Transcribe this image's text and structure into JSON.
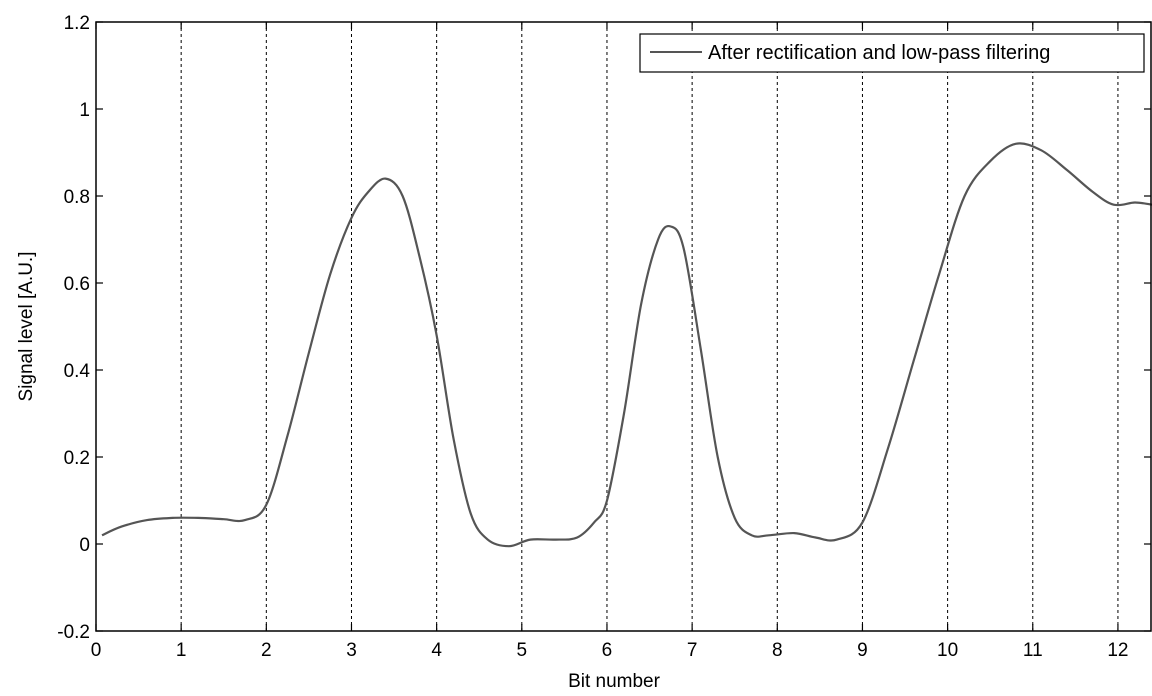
{
  "chart_data": {
    "type": "line",
    "title": "",
    "xlabel": "Bit number",
    "ylabel": "Signal level [A.U.]",
    "xlim": [
      0,
      12.4
    ],
    "ylim": [
      -0.2,
      1.2
    ],
    "xticks": [
      0,
      1,
      2,
      3,
      4,
      5,
      6,
      7,
      8,
      9,
      10,
      11,
      12
    ],
    "xtick_labels": [
      "0",
      "1",
      "2",
      "3",
      "4",
      "5",
      "6",
      "7",
      "8",
      "9",
      "10",
      "11",
      "12"
    ],
    "yticks": [
      -0.2,
      0,
      0.2,
      0.4,
      0.6,
      0.8,
      1,
      1.2
    ],
    "ytick_labels": [
      "-0.2",
      "0",
      "0.2",
      "0.4",
      "0.6",
      "0.8",
      "1",
      "1.2"
    ],
    "vertical_gridlines": [
      1,
      2,
      3,
      4,
      5,
      6,
      7,
      8,
      9,
      10,
      11,
      12
    ],
    "grid_style": "dashed, vertical only",
    "legend_position": "top-right",
    "series": [
      {
        "name": "After rectification and low-pass filtering",
        "color": "#555555",
        "x": [
          0.07,
          0.3,
          0.6,
          0.9,
          1.2,
          1.5,
          1.75,
          2.0,
          2.25,
          2.5,
          2.75,
          3.0,
          3.2,
          3.4,
          3.6,
          3.8,
          4.0,
          4.2,
          4.4,
          4.6,
          4.85,
          5.1,
          5.4,
          5.65,
          5.85,
          6.0,
          6.2,
          6.4,
          6.6,
          6.75,
          6.9,
          7.1,
          7.3,
          7.5,
          7.7,
          7.9,
          8.2,
          8.45,
          8.7,
          9.0,
          9.3,
          9.6,
          9.9,
          10.2,
          10.5,
          10.8,
          11.1,
          11.4,
          11.7,
          11.95,
          12.2,
          12.4
        ],
        "y": [
          0.02,
          0.04,
          0.055,
          0.06,
          0.06,
          0.057,
          0.055,
          0.09,
          0.25,
          0.44,
          0.62,
          0.75,
          0.81,
          0.84,
          0.8,
          0.66,
          0.48,
          0.24,
          0.07,
          0.01,
          -0.005,
          0.01,
          0.01,
          0.015,
          0.05,
          0.1,
          0.3,
          0.55,
          0.7,
          0.73,
          0.68,
          0.45,
          0.2,
          0.06,
          0.02,
          0.02,
          0.025,
          0.015,
          0.01,
          0.05,
          0.22,
          0.42,
          0.62,
          0.8,
          0.88,
          0.92,
          0.905,
          0.86,
          0.81,
          0.78,
          0.785,
          0.78
        ]
      }
    ]
  }
}
